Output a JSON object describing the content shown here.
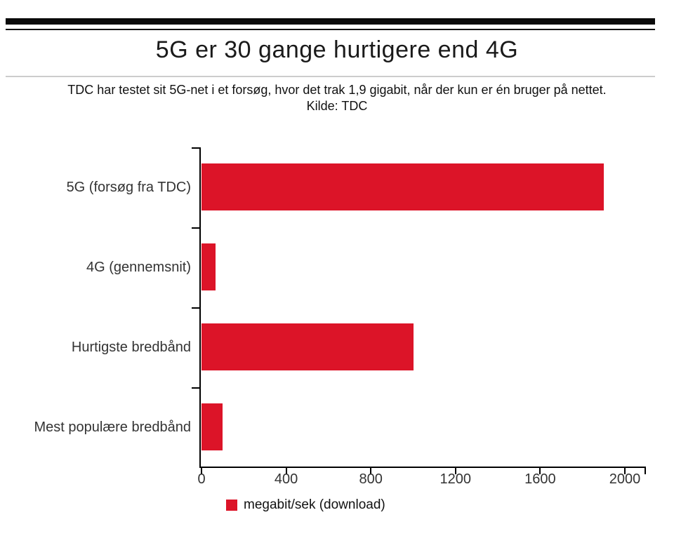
{
  "title": "5G er 30 gange hurtigere end 4G",
  "subtitle": {
    "line1": "TDC har testet sit 5G-net i et forsøg, hvor det trak 1,9 gigabit, når der kun er én bruger på nettet.",
    "line2": "Kilde: TDC"
  },
  "legend": {
    "label": "megabit/sek (download)",
    "swatch_color": "#dc1428"
  },
  "colors": {
    "bar": "#dc1428",
    "axis": "#000000",
    "divider": "#cccccc",
    "label_text": "#333333"
  },
  "chart_data": {
    "type": "bar",
    "orientation": "horizontal",
    "title": "5G er 30 gange hurtigere end 4G",
    "subtitle": "TDC har testet sit 5G-net i et forsøg, hvor det trak 1,9 gigabit, når der kun er én bruger på nettet. Kilde: TDC",
    "categories": [
      "5G (forsøg fra TDC)",
      "4G (gennemsnit)",
      "Hurtigste bredbånd",
      "Mest populære bredbånd"
    ],
    "series": [
      {
        "name": "megabit/sek (download)",
        "values": [
          1900,
          65,
          1000,
          100
        ]
      }
    ],
    "x_ticks": [
      0,
      400,
      800,
      1200,
      1600,
      2000
    ],
    "xlim": [
      0,
      2100
    ],
    "xlabel": "megabit/sek (download)",
    "ylabel": "",
    "grid": false,
    "legend_position": "bottom",
    "bar_color": "#dc1428"
  }
}
